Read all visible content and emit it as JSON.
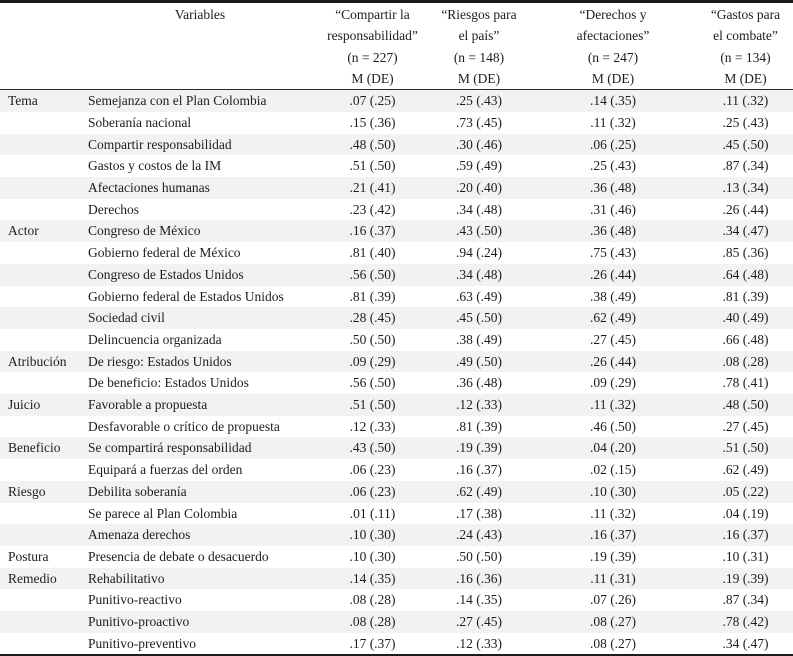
{
  "table": {
    "variables_header": "Variables",
    "stat_row_label": "M (DE)",
    "columns": [
      {
        "title_lines": [
          "“Compartir la",
          "responsabilidad”"
        ],
        "n_label": "(n = 227)",
        "stat_label": "M (DE)"
      },
      {
        "title_lines": [
          "“Riesgos para",
          "el país”"
        ],
        "n_label": "(n = 148)",
        "stat_label": "M (DE)"
      },
      {
        "title_lines": [
          "“Derechos y",
          "afectaciones”"
        ],
        "n_label": "(n = 247)",
        "stat_label": "M (DE)"
      },
      {
        "title_lines": [
          "“Gastos para",
          "el combate”"
        ],
        "n_label": "(n = 134)",
        "stat_label": "M (DE)"
      }
    ],
    "sections": [
      {
        "category": "Tema",
        "rows": [
          {
            "variable": "Semejanza con el Plan Colombia",
            "values": [
              ".07 (.25)",
              ".25 (.43)",
              ".14 (.35)",
              ".11 (.32)"
            ]
          },
          {
            "variable": "Soberanía nacional",
            "values": [
              ".15 (.36)",
              ".73 (.45)",
              ".11 (.32)",
              ".25 (.43)"
            ]
          },
          {
            "variable": "Compartir responsabilidad",
            "values": [
              ".48 (.50)",
              ".30 (.46)",
              ".06 (.25)",
              ".45 (.50)"
            ]
          },
          {
            "variable": "Gastos y costos de la IM",
            "values": [
              ".51 (.50)",
              ".59 (.49)",
              ".25 (.43)",
              ".87 (.34)"
            ]
          },
          {
            "variable": "Afectaciones humanas",
            "values": [
              ".21 (.41)",
              ".20 (.40)",
              ".36 (.48)",
              ".13 (.34)"
            ]
          },
          {
            "variable": "Derechos",
            "values": [
              ".23 (.42)",
              ".34 (.48)",
              ".31 (.46)",
              ".26 (.44)"
            ]
          }
        ]
      },
      {
        "category": "Actor",
        "rows": [
          {
            "variable": "Congreso de México",
            "values": [
              ".16 (.37)",
              ".43 (.50)",
              ".36 (.48)",
              ".34 (.47)"
            ]
          },
          {
            "variable": "Gobierno federal de México",
            "values": [
              ".81 (.40)",
              ".94 (.24)",
              ".75 (.43)",
              ".85 (.36)"
            ]
          },
          {
            "variable": "Congreso de Estados Unidos",
            "values": [
              ".56 (.50)",
              ".34 (.48)",
              ".26 (.44)",
              ".64 (.48)"
            ]
          },
          {
            "variable": "Gobierno federal de Estados Unidos",
            "values": [
              ".81 (.39)",
              ".63 (.49)",
              ".38 (.49)",
              ".81 (.39)"
            ]
          },
          {
            "variable": "Sociedad civil",
            "values": [
              ".28 (.45)",
              ".45 (.50)",
              ".62 (.49)",
              ".40 (.49)"
            ]
          },
          {
            "variable": "Delincuencia organizada",
            "values": [
              ".50 (.50)",
              ".38 (.49)",
              ".27 (.45)",
              ".66 (.48)"
            ]
          }
        ]
      },
      {
        "category": "Atribución",
        "rows": [
          {
            "variable": "De riesgo: Estados Unidos",
            "values": [
              ".09 (.29)",
              ".49 (.50)",
              ".26 (.44)",
              ".08 (.28)"
            ]
          },
          {
            "variable": "De beneficio: Estados Unidos",
            "values": [
              ".56 (.50)",
              ".36 (.48)",
              ".09 (.29)",
              ".78 (.41)"
            ]
          }
        ]
      },
      {
        "category": "Juicio",
        "rows": [
          {
            "variable": "Favorable a propuesta",
            "values": [
              ".51 (.50)",
              ".12 (.33)",
              ".11 (.32)",
              ".48 (.50)"
            ]
          },
          {
            "variable": "Desfavorable o crítico de propuesta",
            "values": [
              ".12 (.33)",
              ".81 (.39)",
              ".46 (.50)",
              ".27 (.45)"
            ]
          }
        ]
      },
      {
        "category": "Beneficio",
        "rows": [
          {
            "variable": "Se compartirá responsabilidad",
            "values": [
              ".43 (.50)",
              ".19 (.39)",
              ".04 (.20)",
              ".51 (.50)"
            ]
          },
          {
            "variable": "Equipará a fuerzas del orden",
            "values": [
              ".06 (.23)",
              ".16 (.37)",
              ".02 (.15)",
              ".62 (.49)"
            ]
          }
        ]
      },
      {
        "category": "Riesgo",
        "rows": [
          {
            "variable": "Debilita soberanía",
            "values": [
              ".06 (.23)",
              ".62 (.49)",
              ".10 (.30)",
              ".05 (.22)"
            ]
          },
          {
            "variable": "Se parece al Plan Colombia",
            "values": [
              ".01 (.11)",
              ".17 (.38)",
              ".11 (.32)",
              ".04 (.19)"
            ]
          },
          {
            "variable": "Amenaza derechos",
            "values": [
              ".10 (.30)",
              ".24 (.43)",
              ".16 (.37)",
              ".16 (.37)"
            ]
          }
        ]
      },
      {
        "category": "Postura",
        "rows": [
          {
            "variable": "Presencia de debate o desacuerdo",
            "values": [
              ".10 (.30)",
              ".50 (.50)",
              ".19 (.39)",
              ".10 (.31)"
            ]
          }
        ]
      },
      {
        "category": "Remedio",
        "rows": [
          {
            "variable": "Rehabilitativo",
            "values": [
              ".14 (.35)",
              ".16 (.36)",
              ".11 (.31)",
              ".19 (.39)"
            ]
          },
          {
            "variable": "Punitivo-reactivo",
            "values": [
              ".08 (.28)",
              ".14 (.35)",
              ".07 (.26)",
              ".87 (.34)"
            ]
          },
          {
            "variable": "Punitivo-proactivo",
            "values": [
              ".08 (.28)",
              ".27 (.45)",
              ".08 (.27)",
              ".78 (.42)"
            ]
          },
          {
            "variable": "Punitivo-preventivo",
            "values": [
              ".17 (.37)",
              ".12 (.33)",
              ".08 (.27)",
              ".34 (.47)"
            ]
          }
        ]
      }
    ],
    "colors": {
      "stripe": "#f2f2f2",
      "rule": "#1b1b1b",
      "text": "#1d1d1d"
    }
  }
}
